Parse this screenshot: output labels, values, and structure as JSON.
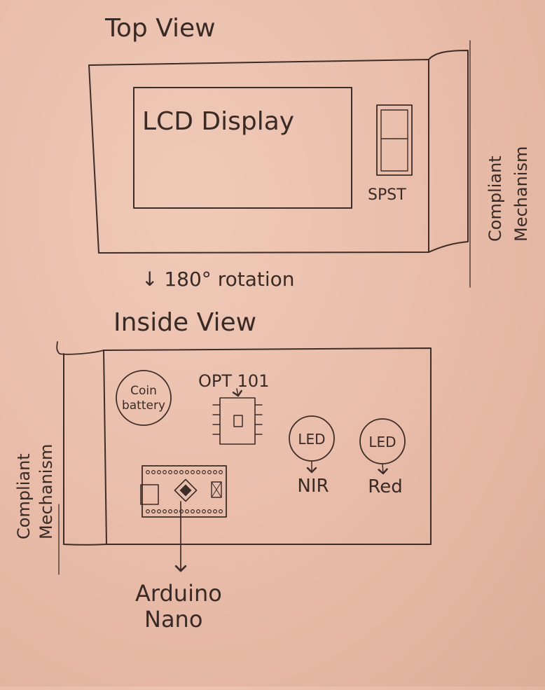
{
  "top_view": {
    "title": "Top View",
    "lcd_label": "LCD Display",
    "switch_label": "SPST",
    "mechanism_label_line1": "Compliant",
    "mechanism_label_line2": "Mechanism"
  },
  "rotation_note": "↓ 180° rotation",
  "inside_view": {
    "title": "Inside View",
    "coin_line1": "Coin",
    "coin_line2": "battery",
    "opt_label": "OPT 101",
    "led1_label": "LED",
    "led1_type": "NIR",
    "led2_label": "LED",
    "led2_type": "Red",
    "arduino_line1": "Arduino",
    "arduino_line2": "Nano",
    "mechanism_label_line1": "Compliant",
    "mechanism_label_line2": "Mechanism"
  }
}
